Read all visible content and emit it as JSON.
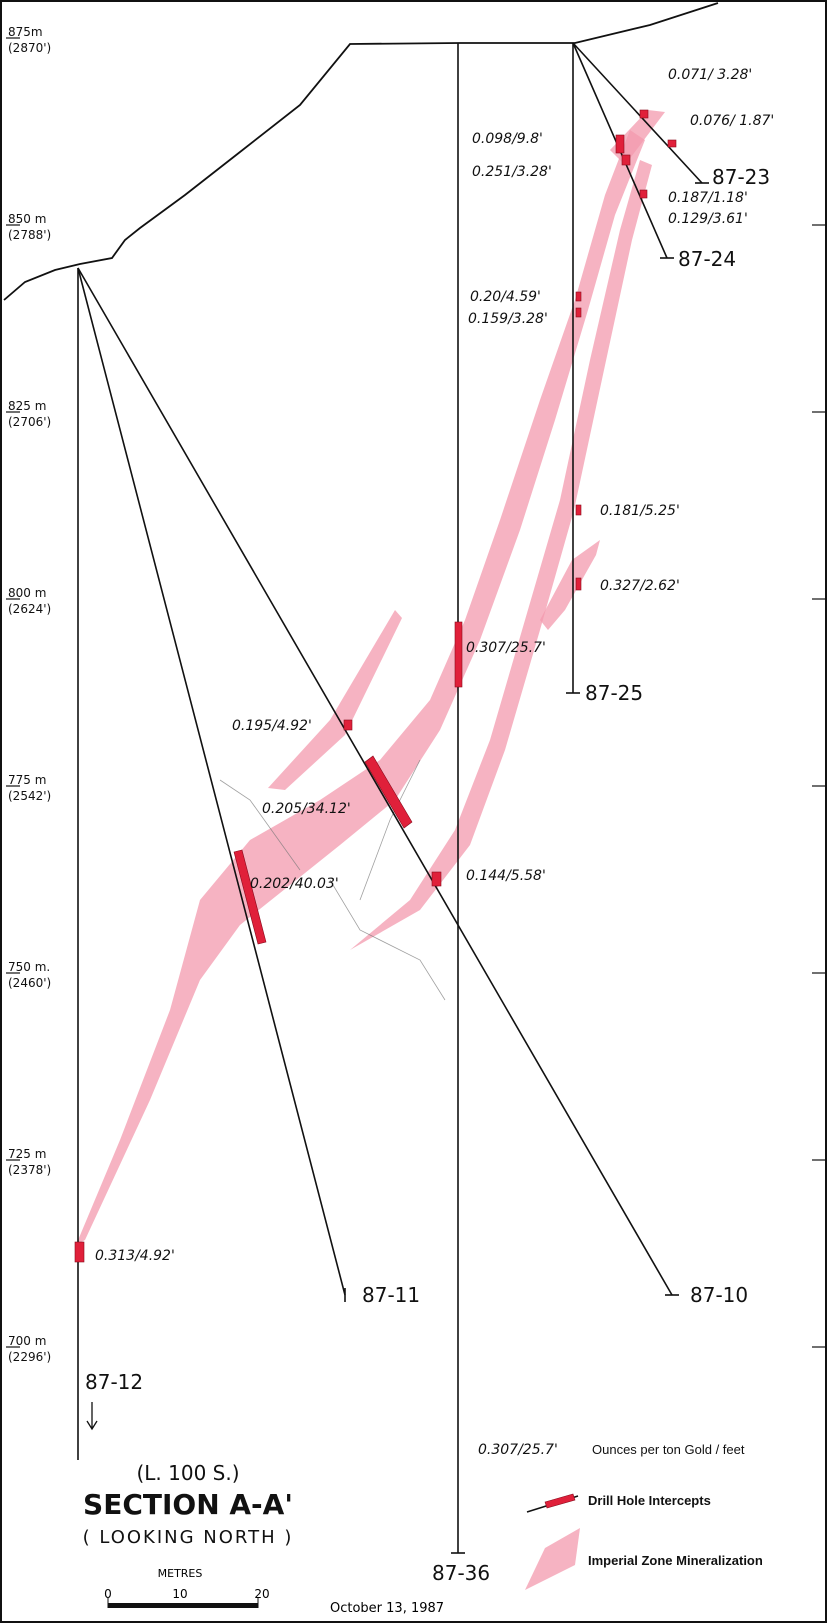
{
  "title": {
    "line": "(L. 100 S.)",
    "section": "SECTION A-A'",
    "view": "( LOOKING NORTH )"
  },
  "elevation_labels": [
    {
      "metres": "875m",
      "feet": "(2870')"
    },
    {
      "metres": "850 m",
      "feet": "(2788')"
    },
    {
      "metres": "825 m",
      "feet": "(2706')"
    },
    {
      "metres": "800 m",
      "feet": "(2624')"
    },
    {
      "metres": "775 m",
      "feet": "(2542')"
    },
    {
      "metres": "750 m.",
      "feet": "(2460')"
    },
    {
      "metres": "725 m",
      "feet": "(2378')"
    },
    {
      "metres": "700 m",
      "feet": "(2296')"
    }
  ],
  "drill_holes": [
    "87-23",
    "87-24",
    "87-25",
    "87-36",
    "87-11",
    "87-10",
    "87-12"
  ],
  "intercepts": [
    "0.071/ 3.28'",
    "0.076/ 1.87'",
    "0.098/9.8'",
    "0.251/3.28'",
    "0.187/1.18'",
    "0.129/3.61'",
    "0.20/4.59'",
    "0.159/3.28'",
    "0.181/5.25'",
    "0.327/2.62'",
    "0.307/25.7'",
    "0.195/4.92'",
    "0.205/34.12'",
    "0.202/40.03'",
    "0.144/5.58'",
    "0.313/4.92'"
  ],
  "legend": {
    "sample": "0.307/25.7'",
    "grade_note": "Ounces per ton Gold / feet",
    "intercepts": "Drill Hole Intercepts",
    "mineralization": "Imperial Zone Mineralization"
  },
  "scale": {
    "unit": "METRES",
    "ticks": [
      0,
      10,
      20
    ]
  },
  "date": "October 13, 1987"
}
